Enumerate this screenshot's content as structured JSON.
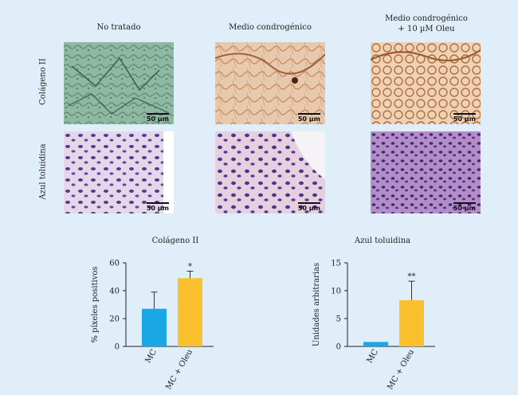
{
  "columns": [
    "No tratado",
    "Medio condrogénico",
    "Medio condrogénico\n+ 10 µM Oleu"
  ],
  "rows": [
    "Colágeno II",
    "Azul toluidina"
  ],
  "scale_bar_label": "50 µm",
  "chart_data": [
    {
      "type": "bar",
      "title": "Colágeno II",
      "ylabel": "% píxeles positivos",
      "categories": [
        "MC",
        "MC + Oleu"
      ],
      "values": [
        27,
        49
      ],
      "errors": [
        12,
        5
      ],
      "significance": [
        "",
        "*"
      ],
      "ylim": [
        0,
        60
      ],
      "yticks": [
        "0",
        "20",
        "40",
        "60"
      ],
      "colors": [
        "#1aa7e6",
        "#fbc02d"
      ],
      "grid": false
    },
    {
      "type": "bar",
      "title": "Azul toluidina",
      "ylabel": "Unidades arbitrarias",
      "categories": [
        "MC",
        "MC + Oleu"
      ],
      "values": [
        0.8,
        8.3
      ],
      "errors": [
        0,
        3.4
      ],
      "significance": [
        "",
        "**"
      ],
      "ylim": [
        0,
        15
      ],
      "yticks": [
        "0",
        "5",
        "10",
        "15"
      ],
      "colors": [
        "#1aa7e6",
        "#fbc02d"
      ],
      "grid": false
    }
  ]
}
